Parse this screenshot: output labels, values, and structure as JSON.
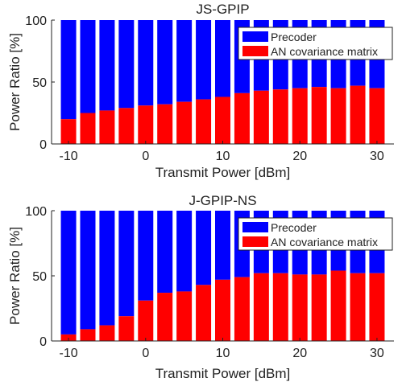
{
  "chart_data": [
    {
      "type": "bar",
      "stacked": true,
      "title": "JS-GPIP",
      "xlabel": "Transmit Power [dBm]",
      "ylabel": "Power Ratio [%]",
      "x": [
        -10,
        -7.5,
        -5,
        -2.5,
        0,
        2.5,
        5,
        7.5,
        10,
        12.5,
        15,
        17.5,
        20,
        22.5,
        25,
        27.5,
        30
      ],
      "xticks": [
        -10,
        0,
        10,
        20,
        30
      ],
      "xtick_labels": [
        "-10",
        "0",
        "10",
        "20",
        "30"
      ],
      "yticks": [
        0,
        50,
        100
      ],
      "ytick_labels": [
        "0",
        "50",
        "100"
      ],
      "ylim": [
        0,
        100
      ],
      "legend_position": "top-right",
      "series": [
        {
          "name": "AN covariance matrix",
          "color": "#ff0000",
          "values": [
            20,
            25,
            27,
            29,
            31,
            32,
            34,
            36,
            38,
            41,
            43,
            44,
            45,
            46,
            45,
            47,
            45
          ]
        },
        {
          "name": "Precoder",
          "color": "#0000ff",
          "values": [
            80,
            75,
            73,
            71,
            69,
            68,
            66,
            64,
            62,
            59,
            57,
            56,
            55,
            54,
            55,
            53,
            55
          ]
        }
      ]
    },
    {
      "type": "bar",
      "stacked": true,
      "title": "J-GPIP-NS",
      "xlabel": "Transmit Power [dBm]",
      "ylabel": "Power Ratio [%]",
      "x": [
        -10,
        -7.5,
        -5,
        -2.5,
        0,
        2.5,
        5,
        7.5,
        10,
        12.5,
        15,
        17.5,
        20,
        22.5,
        25,
        27.5,
        30
      ],
      "xticks": [
        -10,
        0,
        10,
        20,
        30
      ],
      "xtick_labels": [
        "-10",
        "0",
        "10",
        "20",
        "30"
      ],
      "yticks": [
        0,
        50,
        100
      ],
      "ytick_labels": [
        "0",
        "50",
        "100"
      ],
      "ylim": [
        0,
        100
      ],
      "legend_position": "top-right",
      "series": [
        {
          "name": "AN covariance matrix",
          "color": "#ff0000",
          "values": [
            5,
            9,
            12,
            19,
            31,
            37,
            38,
            43,
            47,
            49,
            52,
            52,
            51,
            51,
            54,
            52,
            52
          ]
        },
        {
          "name": "Precoder",
          "color": "#0000ff",
          "values": [
            95,
            91,
            88,
            81,
            69,
            63,
            62,
            57,
            53,
            51,
            48,
            48,
            49,
            49,
            46,
            48,
            48
          ]
        }
      ]
    }
  ]
}
